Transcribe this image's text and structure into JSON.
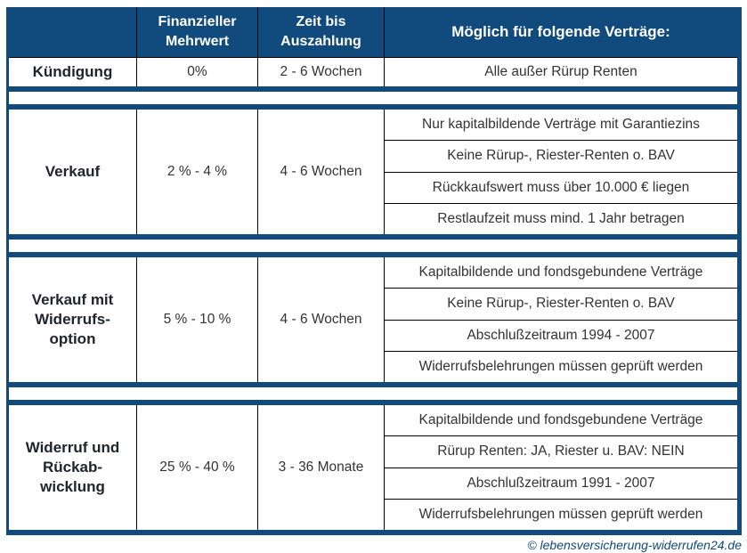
{
  "theme": {
    "navy": "#114a7c",
    "grid_line": "#000000",
    "body_text": "#333333",
    "header_text": "#ffffff"
  },
  "header": {
    "col1": "",
    "col2": "Finanzieller\nMehrwert",
    "col3": "Zeit bis\nAuszahlung",
    "col4": "Möglich für folgende Verträge:"
  },
  "sections": [
    {
      "label": "Kündigung",
      "mehrwert": "0%",
      "zeit": "2 - 6 Wochen",
      "vertraege": [
        "Alle außer Rürup Renten"
      ]
    },
    {
      "label": "Verkauf",
      "mehrwert": "2 % - 4 %",
      "zeit": "4 - 6 Wochen",
      "vertraege": [
        "Nur kapitalbildende Verträge mit Garantiezins",
        "Keine Rürup-, Riester-Renten o. BAV",
        "Rückkaufswert muss über 10.000 € liegen",
        "Restlaufzeit muss mind. 1 Jahr betragen"
      ]
    },
    {
      "label": "Verkauf mit\nWiderrufs-\noption",
      "mehrwert": "5 % - 10 %",
      "zeit": "4 - 6 Wochen",
      "vertraege": [
        "Kapitalbildende und fondsgebundene Verträge",
        "Keine Rürup-, Riester-Renten o. BAV",
        "Abschlußzeitraum 1994 - 2007",
        "Widerrufsbelehrungen müssen geprüft werden"
      ]
    },
    {
      "label": "Widerruf und\nRückab-\nwicklung",
      "mehrwert": "25 % - 40 %",
      "zeit": "3 - 36 Monate",
      "vertraege": [
        "Kapitalbildende und fondsgebundene Verträge",
        "Rürup Renten: JA, Riester u. BAV: NEIN",
        "Abschlußzeitraum 1991 - 2007",
        "Widerrufsbelehrungen müssen geprüft werden"
      ]
    }
  ],
  "footer": {
    "credit": "© lebensversicherung-widerrufen24.de"
  },
  "chart_data": {
    "type": "table",
    "title": "Möglich für folgende Verträge:",
    "columns": [
      "",
      "Finanzieller Mehrwert",
      "Zeit bis Auszahlung",
      "Möglich für folgende Verträge:"
    ],
    "rows": [
      {
        "option": "Kündigung",
        "finanzieller_mehrwert": "0%",
        "zeit_bis_auszahlung": "2 - 6 Wochen",
        "moeglich_fuer": [
          "Alle außer Rürup Renten"
        ]
      },
      {
        "option": "Verkauf",
        "finanzieller_mehrwert": "2 % - 4 %",
        "zeit_bis_auszahlung": "4 - 6 Wochen",
        "moeglich_fuer": [
          "Nur kapitalbildende Verträge mit Garantiezins",
          "Keine Rürup-, Riester-Renten o. BAV",
          "Rückkaufswert muss über 10.000 € liegen",
          "Restlaufzeit muss mind. 1 Jahr betragen"
        ]
      },
      {
        "option": "Verkauf mit Widerrufsoption",
        "finanzieller_mehrwert": "5 % - 10 %",
        "zeit_bis_auszahlung": "4 - 6 Wochen",
        "moeglich_fuer": [
          "Kapitalbildende und fondsgebundene Verträge",
          "Keine Rürup-, Riester-Renten o. BAV",
          "Abschlußzeitraum 1994 - 2007",
          "Widerrufsbelehrungen müssen geprüft werden"
        ]
      },
      {
        "option": "Widerruf und Rückabwicklung",
        "finanzieller_mehrwert": "25 % - 40 %",
        "zeit_bis_auszahlung": "3 - 36 Monate",
        "moeglich_fuer": [
          "Kapitalbildende und fondsgebundene Verträge",
          "Rürup Renten: JA, Riester u. BAV: NEIN",
          "Abschlußzeitraum 1991 - 2007",
          "Widerrufsbelehrungen müssen geprüft werden"
        ]
      }
    ]
  }
}
